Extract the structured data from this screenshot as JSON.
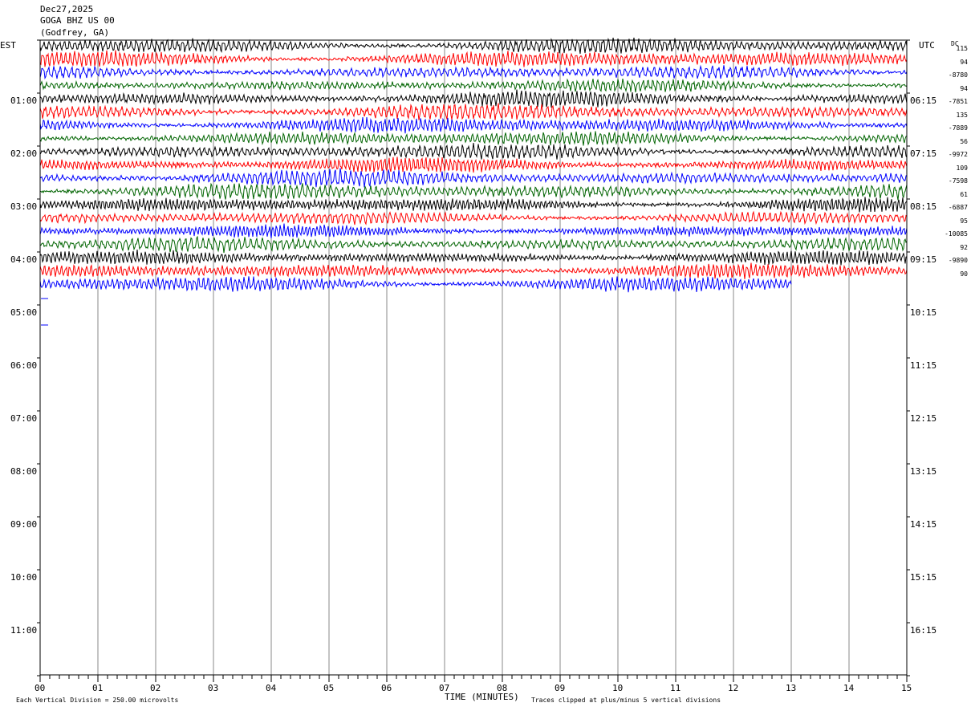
{
  "header": {
    "date": "Dec27,2025",
    "station": "GOGA BHZ US 00",
    "location": "(Godfrey, GA)"
  },
  "left_tz": "EST",
  "right_tz": "UTC",
  "dc_label": "DC",
  "footer": {
    "scale_note": "Each Vertical Division =  250.00 microvolts",
    "xlabel": "TIME (MINUTES)",
    "clip_note": "Traces clipped at plus/minus 5 vertical divisions"
  },
  "colors": {
    "black": "#000000",
    "red": "#ff0000",
    "blue": "#0000ff",
    "green": "#006400",
    "grid": "#888888"
  },
  "chart_data": {
    "type": "line",
    "title": "GOGA BHZ US 00",
    "xlabel": "TIME (MINUTES)",
    "ylabel": "",
    "xlim": [
      0,
      15
    ],
    "x_ticks": [
      "00",
      "01",
      "02",
      "03",
      "04",
      "05",
      "06",
      "07",
      "08",
      "09",
      "10",
      "11",
      "12",
      "13",
      "14",
      "15"
    ],
    "est_hours": [
      "01:00",
      "02:00",
      "03:00",
      "04:00",
      "05:00",
      "06:00",
      "07:00",
      "08:00",
      "09:00",
      "10:00",
      "11:00"
    ],
    "utc_hours": [
      "06:15",
      "07:15",
      "08:15",
      "09:15",
      "10:15",
      "11:15",
      "12:15",
      "13:15",
      "14:15",
      "15:15",
      "16:15"
    ],
    "trace_colors": [
      "black",
      "red",
      "blue",
      "green"
    ],
    "trace_count": 19,
    "last_trace_minutes": 13,
    "dc_offsets": [
      "115",
      "94",
      "-8780",
      "94",
      "-7851",
      "135",
      "-7889",
      "56",
      "-9972",
      "109",
      "-7598",
      "61",
      "-6887",
      "95",
      "-10085",
      "92",
      "-9890",
      "90"
    ],
    "scale_microvolts_per_division": 250.0,
    "clip_divisions": 5
  }
}
